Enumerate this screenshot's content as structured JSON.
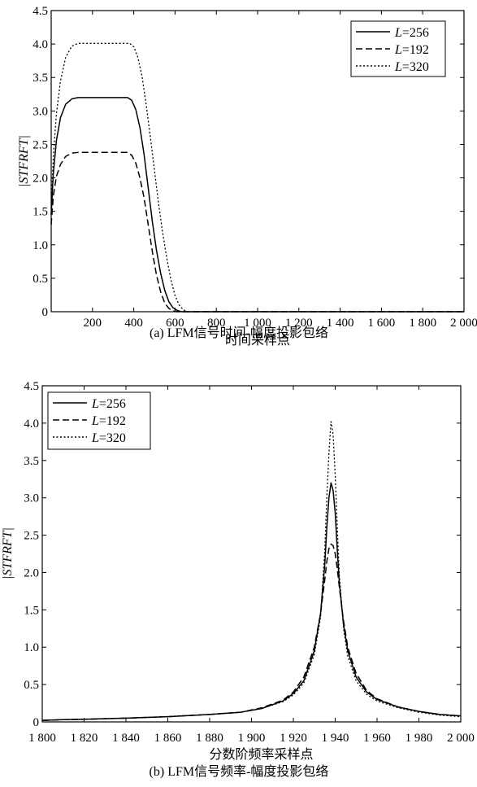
{
  "chart_data": [
    {
      "type": "line",
      "caption": "(a) LFM信号时间-幅度投影包络",
      "xlabel": "时间采样点",
      "ylabel": "|STFRFT|",
      "xlim": [
        0,
        2000
      ],
      "ylim": [
        0,
        4.5
      ],
      "x_ticks": [
        200,
        400,
        600,
        800,
        1000,
        1200,
        1400,
        1600,
        1800,
        2000
      ],
      "x_tick_labels": [
        "200",
        "400",
        "600",
        "800",
        "1 000",
        "1 200",
        "1 400",
        "1 600",
        "1 800",
        "2 000"
      ],
      "y_ticks": [
        0,
        0.5,
        1.0,
        1.5,
        2.0,
        2.5,
        3.0,
        3.5,
        4.0,
        4.5
      ],
      "y_tick_labels": [
        "0",
        "0.5",
        "1.0",
        "1.5",
        "2.0",
        "2.5",
        "3.0",
        "3.5",
        "4.0",
        "4.5"
      ],
      "legend_position": "top-right",
      "series": [
        {
          "name": "L=256",
          "name_italic": "L",
          "name_rest": "=256",
          "dash": "solid",
          "x": [
            0,
            10,
            25,
            45,
            70,
            100,
            130,
            200,
            300,
            370,
            390,
            410,
            430,
            450,
            470,
            490,
            510,
            530,
            550,
            570,
            590,
            610,
            625,
            635,
            640,
            2000
          ],
          "y": [
            1.45,
            2.05,
            2.55,
            2.9,
            3.1,
            3.18,
            3.2,
            3.2,
            3.2,
            3.2,
            3.16,
            3.02,
            2.75,
            2.35,
            1.85,
            1.35,
            0.92,
            0.58,
            0.32,
            0.15,
            0.06,
            0.02,
            0.005,
            0,
            0,
            0
          ]
        },
        {
          "name": "L=192",
          "name_italic": "L",
          "name_rest": "=192",
          "dash": "dashed",
          "x": [
            0,
            10,
            25,
            45,
            70,
            100,
            130,
            200,
            300,
            370,
            390,
            410,
            430,
            450,
            470,
            490,
            510,
            530,
            550,
            570,
            585,
            600,
            610,
            2000
          ],
          "y": [
            1.3,
            1.72,
            2.02,
            2.2,
            2.32,
            2.37,
            2.38,
            2.38,
            2.38,
            2.38,
            2.34,
            2.22,
            2.0,
            1.7,
            1.3,
            0.9,
            0.55,
            0.3,
            0.13,
            0.05,
            0.02,
            0.005,
            0,
            0
          ]
        },
        {
          "name": "L=320",
          "name_italic": "L",
          "name_rest": "=320",
          "dash": "dotted",
          "x": [
            0,
            10,
            25,
            45,
            70,
            100,
            130,
            200,
            300,
            380,
            400,
            420,
            440,
            460,
            480,
            500,
            520,
            540,
            560,
            580,
            600,
            620,
            640,
            655,
            665,
            2000
          ],
          "y": [
            1.55,
            2.3,
            2.95,
            3.45,
            3.8,
            3.97,
            4.01,
            4.01,
            4.01,
            4.01,
            3.96,
            3.8,
            3.52,
            3.1,
            2.62,
            2.12,
            1.62,
            1.18,
            0.8,
            0.48,
            0.24,
            0.1,
            0.03,
            0.005,
            0,
            0
          ]
        }
      ]
    },
    {
      "type": "line",
      "caption": "(b) LFM信号频率-幅度投影包络",
      "xlabel": "分数阶频率采样点",
      "ylabel": "|STFRFT|",
      "xlim": [
        1800,
        2000
      ],
      "ylim": [
        0,
        4.5
      ],
      "x_ticks": [
        1800,
        1820,
        1840,
        1860,
        1880,
        1900,
        1920,
        1940,
        1960,
        1980,
        2000
      ],
      "x_tick_labels": [
        "1 800",
        "1 820",
        "1 840",
        "1 860",
        "1 880",
        "1 900",
        "1 920",
        "1 940",
        "1 960",
        "1 980",
        "2 000"
      ],
      "y_ticks": [
        0,
        0.5,
        1.0,
        1.5,
        2.0,
        2.5,
        3.0,
        3.5,
        4.0,
        4.5
      ],
      "y_tick_labels": [
        "0",
        "0.5",
        "1.0",
        "1.5",
        "2.0",
        "2.5",
        "3.0",
        "3.5",
        "4.0",
        "4.5"
      ],
      "legend_position": "top-left",
      "series": [
        {
          "name": "L=256",
          "name_italic": "L",
          "name_rest": "=256",
          "dash": "solid",
          "x": [
            1800,
            1810,
            1820,
            1840,
            1860,
            1880,
            1895,
            1905,
            1915,
            1920,
            1925,
            1930,
            1933,
            1935,
            1936,
            1937,
            1938,
            1939,
            1940,
            1941,
            1942,
            1944,
            1946,
            1950,
            1955,
            1960,
            1970,
            1980,
            1990,
            2000
          ],
          "y": [
            0.02,
            0.03,
            0.035,
            0.05,
            0.07,
            0.1,
            0.13,
            0.18,
            0.28,
            0.38,
            0.55,
            0.95,
            1.45,
            2.1,
            2.6,
            3.0,
            3.2,
            3.1,
            2.8,
            2.3,
            1.85,
            1.3,
            0.95,
            0.6,
            0.4,
            0.3,
            0.2,
            0.14,
            0.1,
            0.08
          ]
        },
        {
          "name": "L=192",
          "name_italic": "L",
          "name_rest": "=192",
          "dash": "dashed",
          "x": [
            1800,
            1810,
            1820,
            1840,
            1860,
            1880,
            1895,
            1905,
            1915,
            1920,
            1925,
            1930,
            1933,
            1935,
            1936,
            1937,
            1938,
            1939,
            1940,
            1941,
            1942,
            1944,
            1946,
            1950,
            1955,
            1960,
            1970,
            1980,
            1990,
            2000
          ],
          "y": [
            0.02,
            0.03,
            0.035,
            0.05,
            0.07,
            0.1,
            0.13,
            0.19,
            0.29,
            0.4,
            0.6,
            1.0,
            1.45,
            1.9,
            2.15,
            2.32,
            2.38,
            2.36,
            2.25,
            2.05,
            1.8,
            1.35,
            1.0,
            0.65,
            0.42,
            0.31,
            0.2,
            0.14,
            0.1,
            0.08
          ]
        },
        {
          "name": "L=320",
          "name_italic": "L",
          "name_rest": "=320",
          "dash": "dotted",
          "x": [
            1800,
            1810,
            1820,
            1840,
            1860,
            1880,
            1895,
            1905,
            1915,
            1920,
            1925,
            1930,
            1933,
            1935,
            1936,
            1937,
            1938,
            1939,
            1940,
            1941,
            1942,
            1944,
            1946,
            1950,
            1955,
            1960,
            1970,
            1980,
            1990,
            2000
          ],
          "y": [
            0.02,
            0.03,
            0.035,
            0.05,
            0.07,
            0.1,
            0.13,
            0.18,
            0.27,
            0.36,
            0.52,
            0.9,
            1.4,
            2.3,
            3.0,
            3.6,
            4.02,
            3.85,
            3.3,
            2.6,
            1.95,
            1.25,
            0.88,
            0.55,
            0.37,
            0.28,
            0.19,
            0.13,
            0.09,
            0.07
          ]
        }
      ]
    }
  ]
}
